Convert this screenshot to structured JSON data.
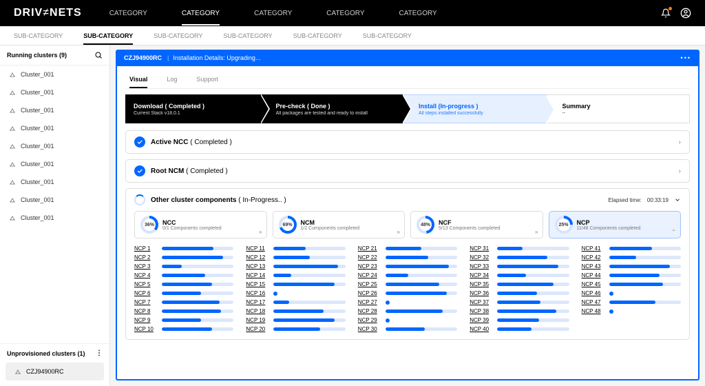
{
  "colors": {
    "accent": "#0066ff",
    "track": "#dce7fb",
    "black": "#000000"
  },
  "brand": {
    "part1": "DRIV",
    "part2": "NETS"
  },
  "topnav": [
    "CATEGORY",
    "CATEGORY",
    "CATEGORY",
    "CATEGORY",
    "CATEGORY"
  ],
  "topnav_active_index": 1,
  "subnav": [
    "SUB-CATEGORY",
    "SUB-CATEGORY",
    "SUB-CATEGORY",
    "SUB-CATEGORY",
    "SUB-CATEGORY",
    "SUB-CATEGORY"
  ],
  "subnav_active_index": 1,
  "sidebar": {
    "running_title": "Running clusters (9)",
    "items": [
      "Cluster_001",
      "Cluster_001",
      "Cluster_001",
      "Cluster_001",
      "Cluster_001",
      "Cluster_001",
      "Cluster_001",
      "Cluster_001",
      "Cluster_001"
    ],
    "unprov_title": "Unprovisioned clusters (1)",
    "unprov_items": [
      "CZJ94900RC"
    ]
  },
  "installbar": {
    "id": "CZJ94900RC",
    "text": "Installation Details: Upgrading..."
  },
  "viewtabs": [
    "Visual",
    "Log",
    "Support"
  ],
  "viewtab_active_index": 0,
  "steps": [
    {
      "title": "Download ( Completed )",
      "sub": "Current Stack v18.0.1",
      "style": "dark"
    },
    {
      "title": "Pre-check ( Done )",
      "sub": "All packages are tested and ready to install",
      "style": "dark"
    },
    {
      "title": "Install (In-progress )",
      "sub": "All steps installed successfully",
      "style": "blue"
    },
    {
      "title": "Summary",
      "sub": "--",
      "style": "white"
    }
  ],
  "sections": {
    "active_ncc": {
      "label": "Active NCC",
      "status": "( Completed )"
    },
    "root_ncm": {
      "label": "Root NCM",
      "status": "( Completed )"
    }
  },
  "other": {
    "title": "Other cluster components",
    "status": "( In-Progress.. )",
    "elapsed_label": "Elapsed time:",
    "elapsed_value": "00:33:19",
    "cards": [
      {
        "name": "NCC",
        "pct": 36,
        "sub": "0/1 Components completed",
        "selected": false
      },
      {
        "name": "NCM",
        "pct": 69,
        "sub": "1/2 Components completed",
        "selected": false
      },
      {
        "name": "NCF",
        "pct": 48,
        "sub": "5/13 Components completed",
        "selected": false
      },
      {
        "name": "NCP",
        "pct": 25,
        "sub": "11/48 Components completed",
        "selected": true
      }
    ],
    "ncp": {
      "count": 48,
      "progress": [
        72,
        85,
        28,
        60,
        70,
        55,
        80,
        82,
        55,
        70,
        45,
        50,
        90,
        25,
        85,
        8,
        22,
        70,
        85,
        65,
        50,
        60,
        88,
        32,
        75,
        85,
        8,
        80,
        8,
        55,
        35,
        70,
        85,
        40,
        78,
        55,
        60,
        82,
        58,
        48,
        60,
        38,
        85,
        70,
        75,
        8,
        65,
        8
      ]
    }
  }
}
